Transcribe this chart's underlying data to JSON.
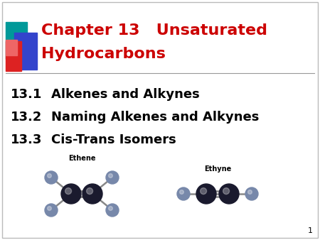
{
  "title_line1": "Chapter 13   Unsaturated",
  "title_line2": "Hydrocarbons",
  "title_color": "#cc0000",
  "title_fontsize": 16,
  "items": [
    {
      "number": "13.1",
      "text": "Alkenes and Alkynes"
    },
    {
      "number": "13.2",
      "text": "Naming Alkenes and Alkynes"
    },
    {
      "number": "13.3",
      "text": "Cis-Trans Isomers"
    }
  ],
  "item_fontsize": 13,
  "item_color": "#000000",
  "bg_color": "#ffffff",
  "page_number": "1",
  "ethene_label": "Ethene",
  "ethyne_label": "Ethyne",
  "label_fontsize": 7,
  "dec_teal": "#009999",
  "dec_blue": "#3344cc",
  "dec_red": "#dd2222",
  "dec_pink": "#ee6666",
  "separator_color": "#999999",
  "h_color": "#7788aa",
  "c_color": "#1a1a2e",
  "bond_color": "#888888"
}
